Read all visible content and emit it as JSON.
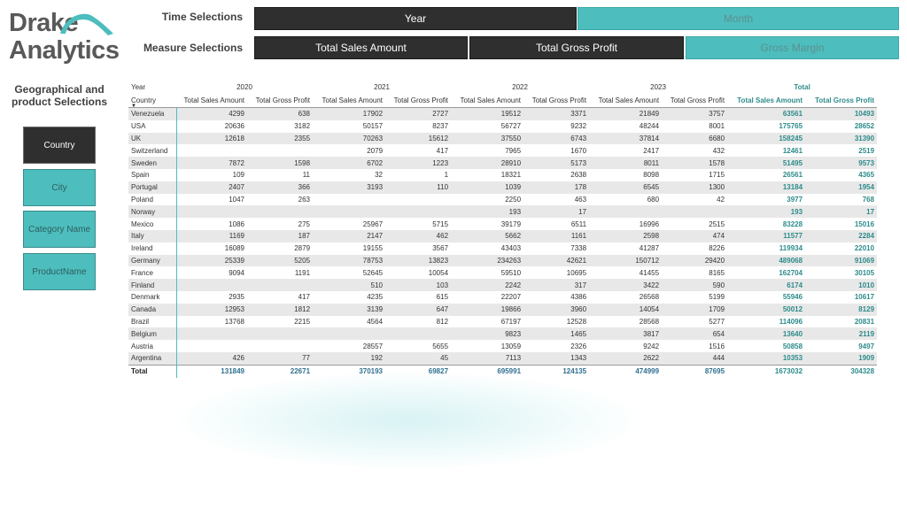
{
  "logo": {
    "line1": "Drake",
    "line2": "Analytics"
  },
  "time_selections": {
    "label": "Time Selections",
    "buttons": [
      {
        "label": "Year",
        "selected": true
      },
      {
        "label": "Month",
        "selected": false
      }
    ]
  },
  "measure_selections": {
    "label": "Measure Selections",
    "buttons": [
      {
        "label": "Total Sales Amount",
        "selected": true
      },
      {
        "label": "Total Gross Profit",
        "selected": true
      },
      {
        "label": "Gross Margin",
        "selected": false
      }
    ]
  },
  "sidebar": {
    "title": "Geographical and product Selections",
    "items": [
      {
        "label": "Country",
        "selected": true
      },
      {
        "label": "City",
        "selected": false
      },
      {
        "label": "Category Name",
        "selected": false
      },
      {
        "label": "ProductName",
        "selected": false
      }
    ]
  },
  "matrix": {
    "year_header_label": "Year",
    "row_header_label": "Country",
    "years": [
      "2020",
      "2021",
      "2022",
      "2023"
    ],
    "total_label": "Total",
    "measure_labels": [
      "Total Sales Amount",
      "Total Gross Profit"
    ],
    "rows": [
      {
        "country": "Venezuela",
        "values": [
          "4299",
          "638",
          "17902",
          "2727",
          "19512",
          "3371",
          "21849",
          "3757"
        ],
        "totals": [
          "63561",
          "10493"
        ]
      },
      {
        "country": "USA",
        "values": [
          "20636",
          "3182",
          "50157",
          "8237",
          "56727",
          "9232",
          "48244",
          "8001"
        ],
        "totals": [
          "175765",
          "28652"
        ]
      },
      {
        "country": "UK",
        "values": [
          "12618",
          "2355",
          "70263",
          "15612",
          "37550",
          "6743",
          "37814",
          "6680"
        ],
        "totals": [
          "158245",
          "31390"
        ]
      },
      {
        "country": "Switzerland",
        "values": [
          "",
          "",
          "2079",
          "417",
          "7965",
          "1670",
          "2417",
          "432"
        ],
        "totals": [
          "12461",
          "2519"
        ]
      },
      {
        "country": "Sweden",
        "values": [
          "7872",
          "1598",
          "6702",
          "1223",
          "28910",
          "5173",
          "8011",
          "1578"
        ],
        "totals": [
          "51495",
          "9573"
        ]
      },
      {
        "country": "Spain",
        "values": [
          "109",
          "11",
          "32",
          "1",
          "18321",
          "2638",
          "8098",
          "1715"
        ],
        "totals": [
          "26561",
          "4365"
        ]
      },
      {
        "country": "Portugal",
        "values": [
          "2407",
          "366",
          "3193",
          "110",
          "1039",
          "178",
          "6545",
          "1300"
        ],
        "totals": [
          "13184",
          "1954"
        ]
      },
      {
        "country": "Poland",
        "values": [
          "1047",
          "263",
          "",
          "",
          "2250",
          "463",
          "680",
          "42"
        ],
        "totals": [
          "3977",
          "768"
        ]
      },
      {
        "country": "Norway",
        "values": [
          "",
          "",
          "",
          "",
          "193",
          "17",
          "",
          ""
        ],
        "totals": [
          "193",
          "17"
        ]
      },
      {
        "country": "Mexico",
        "values": [
          "1086",
          "275",
          "25967",
          "5715",
          "39179",
          "6511",
          "16996",
          "2515"
        ],
        "totals": [
          "83228",
          "15016"
        ]
      },
      {
        "country": "Italy",
        "values": [
          "1169",
          "187",
          "2147",
          "462",
          "5662",
          "1161",
          "2598",
          "474"
        ],
        "totals": [
          "11577",
          "2284"
        ]
      },
      {
        "country": "Ireland",
        "values": [
          "16089",
          "2879",
          "19155",
          "3567",
          "43403",
          "7338",
          "41287",
          "8226"
        ],
        "totals": [
          "119934",
          "22010"
        ]
      },
      {
        "country": "Germany",
        "values": [
          "25339",
          "5205",
          "78753",
          "13823",
          "234263",
          "42621",
          "150712",
          "29420"
        ],
        "totals": [
          "489068",
          "91069"
        ]
      },
      {
        "country": "France",
        "values": [
          "9094",
          "1191",
          "52645",
          "10054",
          "59510",
          "10695",
          "41455",
          "8165"
        ],
        "totals": [
          "162704",
          "30105"
        ]
      },
      {
        "country": "Finland",
        "values": [
          "",
          "",
          "510",
          "103",
          "2242",
          "317",
          "3422",
          "590"
        ],
        "totals": [
          "6174",
          "1010"
        ]
      },
      {
        "country": "Denmark",
        "values": [
          "2935",
          "417",
          "4235",
          "615",
          "22207",
          "4386",
          "26568",
          "5199"
        ],
        "totals": [
          "55946",
          "10617"
        ]
      },
      {
        "country": "Canada",
        "values": [
          "12953",
          "1812",
          "3139",
          "647",
          "19866",
          "3960",
          "14054",
          "1709"
        ],
        "totals": [
          "50012",
          "8129"
        ]
      },
      {
        "country": "Brazil",
        "values": [
          "13768",
          "2215",
          "4564",
          "812",
          "67197",
          "12528",
          "28568",
          "5277"
        ],
        "totals": [
          "114096",
          "20831"
        ]
      },
      {
        "country": "Belgium",
        "values": [
          "",
          "",
          "",
          "",
          "9823",
          "1465",
          "3817",
          "654"
        ],
        "totals": [
          "13640",
          "2119"
        ]
      },
      {
        "country": "Austria",
        "values": [
          "",
          "",
          "28557",
          "5655",
          "13059",
          "2326",
          "9242",
          "1516"
        ],
        "totals": [
          "50858",
          "9497"
        ]
      },
      {
        "country": "Argentina",
        "values": [
          "426",
          "77",
          "192",
          "45",
          "7113",
          "1343",
          "2622",
          "444"
        ],
        "totals": [
          "10353",
          "1909"
        ]
      }
    ],
    "total_row": {
      "label": "Total",
      "values": [
        "131849",
        "22671",
        "370193",
        "69827",
        "695991",
        "124135",
        "474999",
        "87695"
      ],
      "totals": [
        "1673032",
        "304328"
      ]
    }
  },
  "colors": {
    "accent_teal": "#4dbdbd",
    "dark_button": "#2f2f2f",
    "total_text": "#2e8b8b"
  }
}
